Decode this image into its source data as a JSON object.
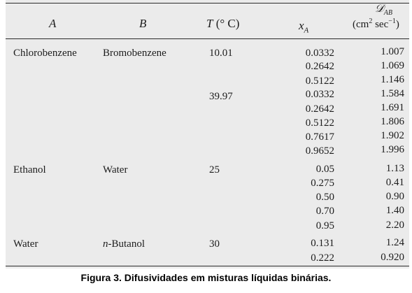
{
  "table": {
    "headers": {
      "a": "A",
      "b": "B",
      "t_pre": "T",
      "t_unit": "(° C)",
      "x": "x",
      "x_sub": "A",
      "d": "𝒟",
      "d_sub": "AB",
      "d_unit_pre": "(cm",
      "d_unit_sup1": "2",
      "d_unit_mid": " sec",
      "d_unit_sup2": "−1",
      "d_unit_post": ")"
    },
    "groups": [
      {
        "a": "Chlorobenzene",
        "b": "Bromobenzene",
        "b_italic_prefix": ""
      },
      {
        "a": "Ethanol",
        "b": "Water",
        "b_italic_prefix": ""
      },
      {
        "a": "Water",
        "b_italic_prefix": "n",
        "b": "-Butanol"
      }
    ],
    "temperatures": [
      "10.01",
      "39.97",
      "25",
      "30"
    ],
    "rows": [
      {
        "x": "0.0332",
        "d": "1.007"
      },
      {
        "x": "0.2642",
        "d": "1.069"
      },
      {
        "x": "0.5122",
        "d": "1.146"
      },
      {
        "x": "0.0332",
        "d": "1.584"
      },
      {
        "x": "0.2642",
        "d": "1.691"
      },
      {
        "x": "0.5122",
        "d": "1.806"
      },
      {
        "x": "0.7617",
        "d": "1.902"
      },
      {
        "x": "0.9652",
        "d": "1.996"
      },
      {
        "x": "0.05",
        "d": "1.13"
      },
      {
        "x": "0.275",
        "d": "0.41"
      },
      {
        "x": "0.50",
        "d": "0.90"
      },
      {
        "x": "0.70",
        "d": "1.40"
      },
      {
        "x": "0.95",
        "d": "2.20"
      },
      {
        "x": "0.131",
        "d": "1.24"
      },
      {
        "x": "0.222",
        "d": "0.920"
      }
    ]
  },
  "caption": "Figura 3. Difusividades em misturas líquidas binárias."
}
